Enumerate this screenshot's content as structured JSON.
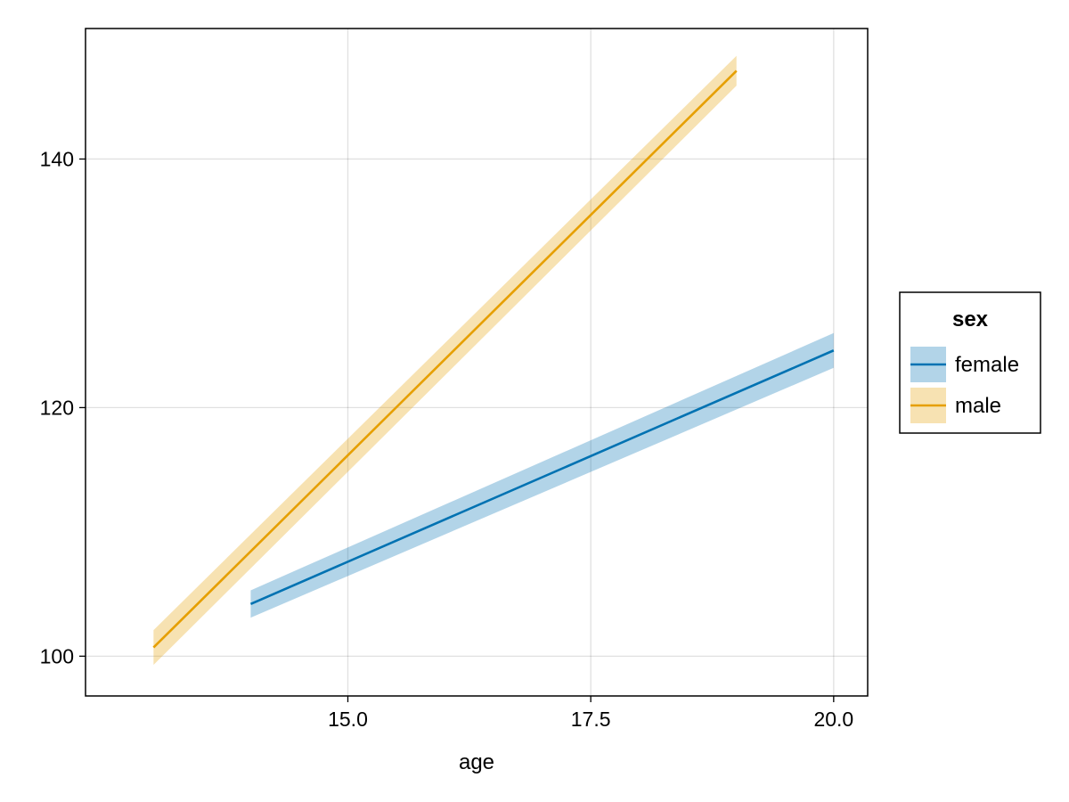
{
  "chart_data": {
    "type": "line",
    "xlabel": "age",
    "ylabel": "",
    "xlim": [
      12.3,
      20.35
    ],
    "ylim": [
      96.8,
      150.5
    ],
    "xticks": [
      15.0,
      17.5,
      20.0
    ],
    "xtick_labels": [
      "15.0",
      "17.5",
      "20.0"
    ],
    "yticks": [
      100,
      120,
      140
    ],
    "ytick_labels": [
      "100",
      "120",
      "140"
    ],
    "grid": true,
    "legend": {
      "title": "sex",
      "placement": "right"
    },
    "series": [
      {
        "name": "female",
        "color": "#0072b2",
        "band_color": "#0072b2",
        "x": [
          14.0,
          20.0
        ],
        "y": [
          104.2,
          124.6
        ],
        "lower": [
          103.1,
          123.2
        ],
        "upper": [
          105.3,
          126.0
        ]
      },
      {
        "name": "male",
        "color": "#e69f00",
        "band_color": "#e69f00",
        "x": [
          13.0,
          19.0
        ],
        "y": [
          100.7,
          147.1
        ],
        "lower": [
          99.3,
          145.9
        ],
        "upper": [
          102.1,
          148.3
        ]
      }
    ]
  }
}
